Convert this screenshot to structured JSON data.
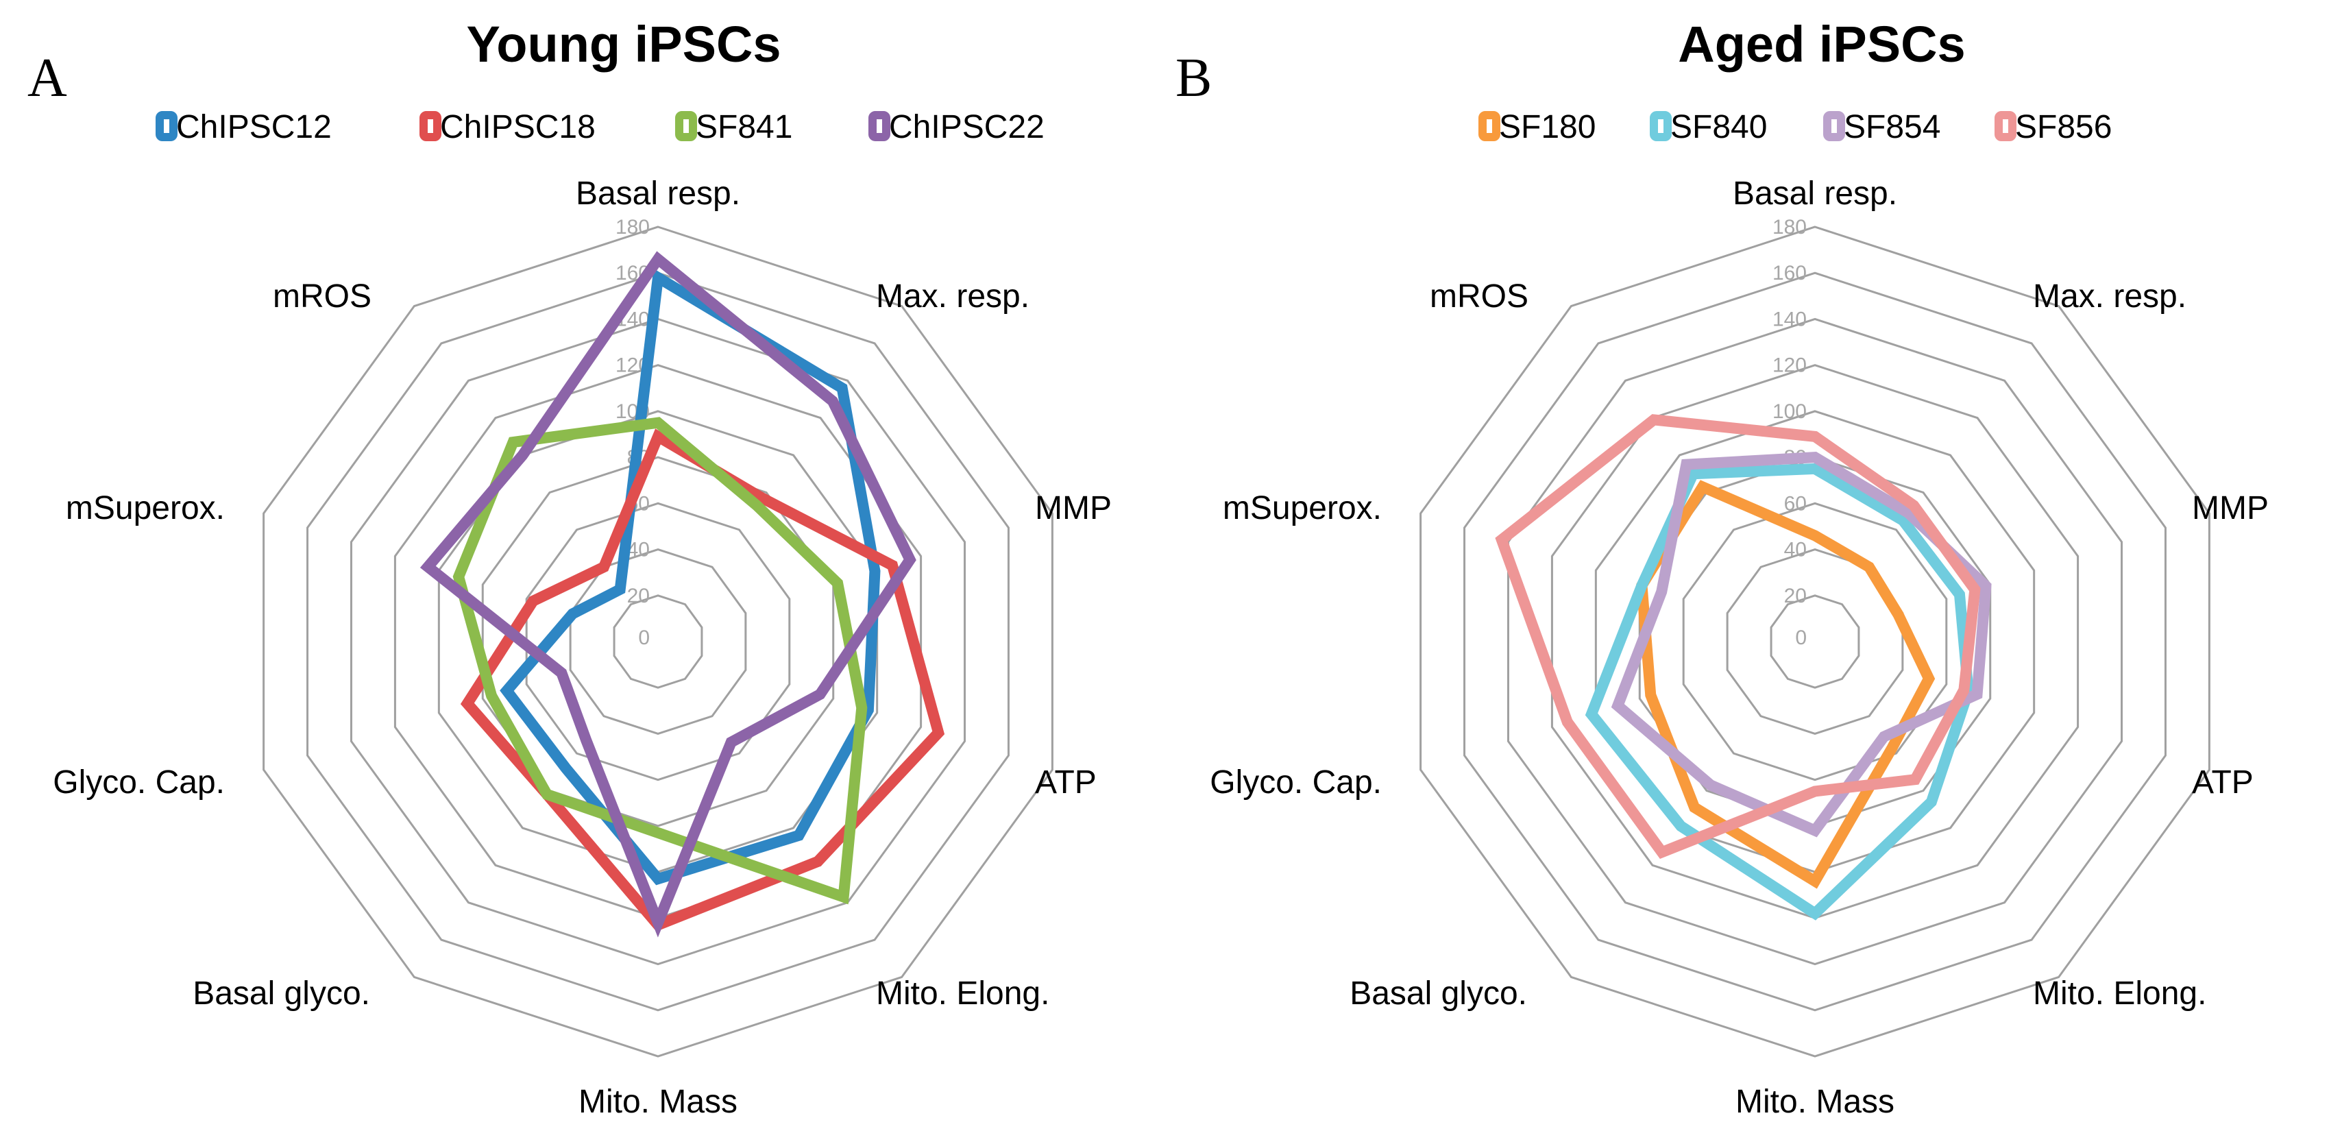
{
  "chart_data": [
    {
      "type": "radar",
      "panel": "A",
      "title": "Young iPSCs",
      "axes": [
        "Basal resp.",
        "Max. resp.",
        "MMP",
        "ATP",
        "Mito. Elong.",
        "Mito. Mass",
        "Basal glyco.",
        "Glyco. Cap.",
        "mSuperox.",
        "mROS"
      ],
      "rlim": [
        0,
        180
      ],
      "ticks": [
        "0",
        "20",
        "40",
        "60",
        "80",
        "100",
        "120",
        "140",
        "160",
        "180"
      ],
      "legend_position": "top",
      "series": [
        {
          "name": "ChIPSC12",
          "color": "#2E86C4",
          "values": [
            158,
            136,
            99,
            96,
            104,
            103,
            68,
            69,
            39,
            28
          ]
        },
        {
          "name": "ChIPSC18",
          "color": "#E04E4E",
          "values": [
            89,
            77,
            107,
            128,
            118,
            123,
            82,
            87,
            57,
            40
          ]
        },
        {
          "name": "SF841",
          "color": "#8CBB4C",
          "values": [
            95,
            73,
            82,
            93,
            137,
            83,
            82,
            76,
            91,
            107
          ]
        },
        {
          "name": "ChIPSC22",
          "color": "#8C64A8",
          "values": [
            166,
            129,
            115,
            74,
            54,
            122,
            53,
            44,
            105,
            100
          ]
        }
      ]
    },
    {
      "type": "radar",
      "panel": "B",
      "title": "Aged iPSCs",
      "axes": [
        "Basal resp.",
        "Max. resp.",
        "MMP",
        "ATP",
        "Mito. Elong.",
        "Mito. Mass",
        "Basal glyco.",
        "Glyco. Cap.",
        "mSuperox.",
        "mROS"
      ],
      "rlim": [
        0,
        180
      ],
      "ticks": [
        "0",
        "20",
        "40",
        "60",
        "80",
        "100",
        "120",
        "140",
        "160",
        "180"
      ],
      "legend_position": "top",
      "series": [
        {
          "name": "SF180",
          "color": "#F89A3C",
          "values": [
            46,
            40,
            38,
            52,
            57,
            104,
            89,
            75,
            79,
            83
          ]
        },
        {
          "name": "SF840",
          "color": "#70CCDE",
          "values": [
            75,
            65,
            66,
            70,
            86,
            118,
            99,
            102,
            79,
            90
          ]
        },
        {
          "name": "SF854",
          "color": "#BBA2CC",
          "values": [
            80,
            69,
            78,
            74,
            51,
            82,
            77,
            90,
            70,
            95
          ]
        },
        {
          "name": "SF856",
          "color": "#EE9696",
          "values": [
            89,
            73,
            73,
            68,
            74,
            65,
            113,
            113,
            143,
            119
          ]
        }
      ]
    }
  ]
}
